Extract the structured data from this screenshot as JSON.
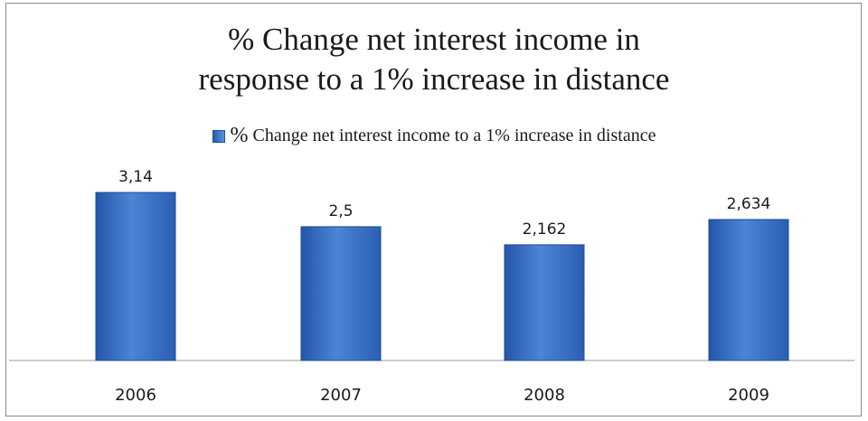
{
  "chart_data": {
    "type": "bar",
    "title_line1": "% Change net interest income in",
    "title_line2": "response to a 1% increase in distance",
    "legend": {
      "symbol": "%",
      "label": "Change net interest income to a 1% increase in distance"
    },
    "categories": [
      "2006",
      "2007",
      "2008",
      "2009"
    ],
    "series": [
      {
        "name": "% Change net interest income to a 1% increase in distance",
        "values": [
          3.14,
          2.5,
          2.162,
          2.634
        ],
        "labels": [
          "3,14",
          "2,5",
          "2,162",
          "2,634"
        ]
      }
    ],
    "bar_color": "#3a6fc4",
    "ylim": [
      0,
      3.14
    ],
    "xlabel": "",
    "ylabel": "",
    "grid": false,
    "legend_position": "top"
  }
}
